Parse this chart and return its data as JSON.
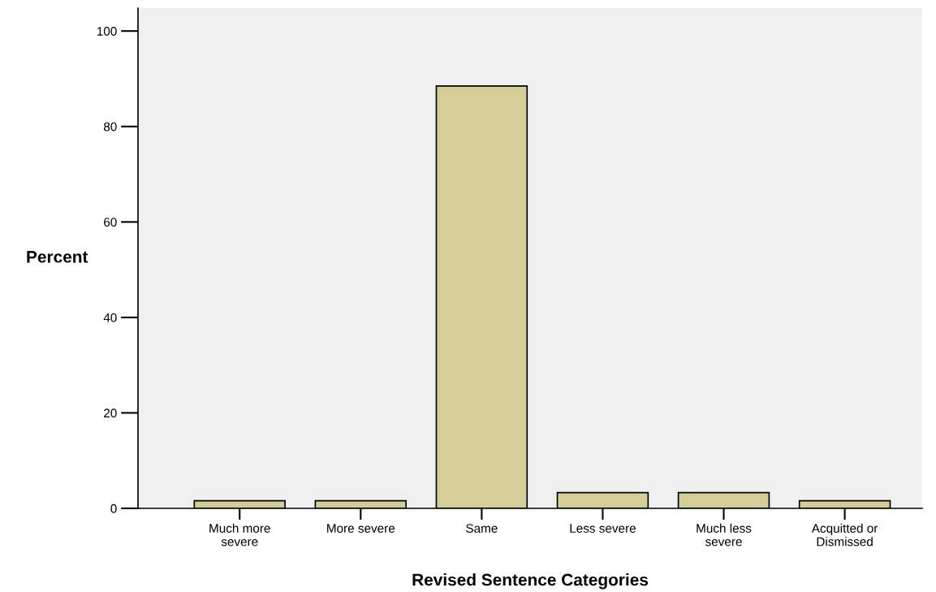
{
  "chart_data": {
    "type": "bar",
    "categories": [
      "Much more\nsevere",
      "More severe",
      "Same",
      "Less severe",
      "Much less\nsevere",
      "Acquitted or\nDismissed"
    ],
    "values": [
      1.6,
      1.6,
      88.5,
      3.3,
      3.3,
      1.6
    ],
    "color": "#d3ce97",
    "xlabel": "Revised Sentence Categories",
    "ylabel": "Percent",
    "ylim": [
      0,
      104.8
    ],
    "yticks": [
      0,
      20,
      40,
      60,
      80,
      100
    ],
    "grid": false,
    "legend": false
  }
}
